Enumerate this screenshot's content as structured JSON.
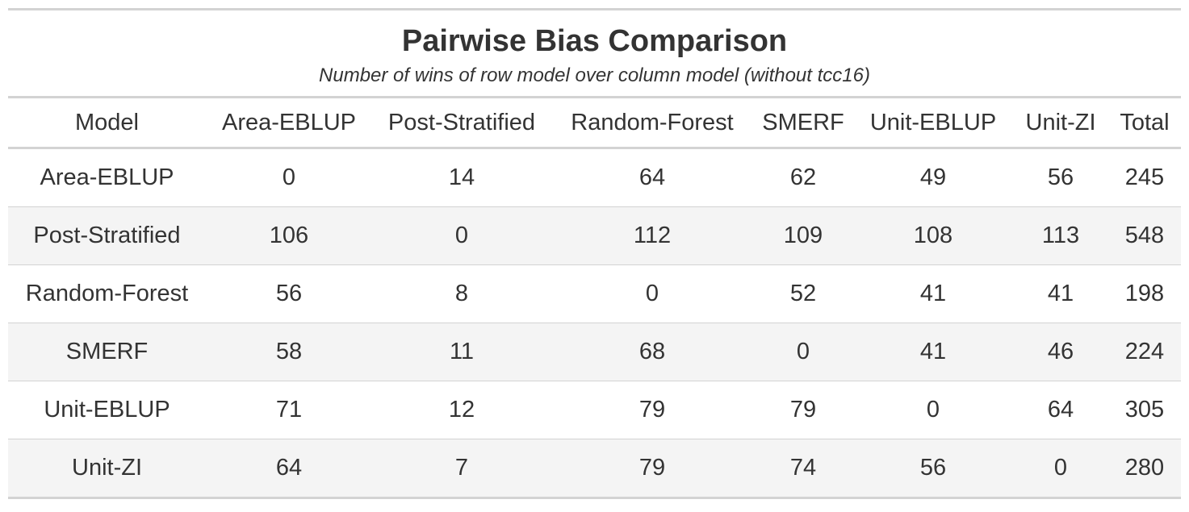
{
  "chart_data": {
    "type": "table",
    "title": "Pairwise Bias Comparison",
    "subtitle": "Number of wins of row model over column model (without tcc16)",
    "columns": [
      "Model",
      "Area-EBLUP",
      "Post-Stratified",
      "Random-Forest",
      "SMERF",
      "Unit-EBLUP",
      "Unit-ZI",
      "Total"
    ],
    "rows": [
      [
        "Area-EBLUP",
        "0",
        "14",
        "64",
        "62",
        "49",
        "56",
        "245"
      ],
      [
        "Post-Stratified",
        "106",
        "0",
        "112",
        "109",
        "108",
        "113",
        "548"
      ],
      [
        "Random-Forest",
        "56",
        "8",
        "0",
        "52",
        "41",
        "41",
        "198"
      ],
      [
        "SMERF",
        "58",
        "11",
        "68",
        "0",
        "41",
        "46",
        "224"
      ],
      [
        "Unit-EBLUP",
        "71",
        "12",
        "79",
        "79",
        "0",
        "64",
        "305"
      ],
      [
        "Unit-ZI",
        "64",
        "7",
        "79",
        "74",
        "56",
        "0",
        "280"
      ]
    ]
  },
  "colors": {
    "text": "#333333",
    "rule": "#d3d3d3",
    "stripe": "#f4f4f4"
  }
}
